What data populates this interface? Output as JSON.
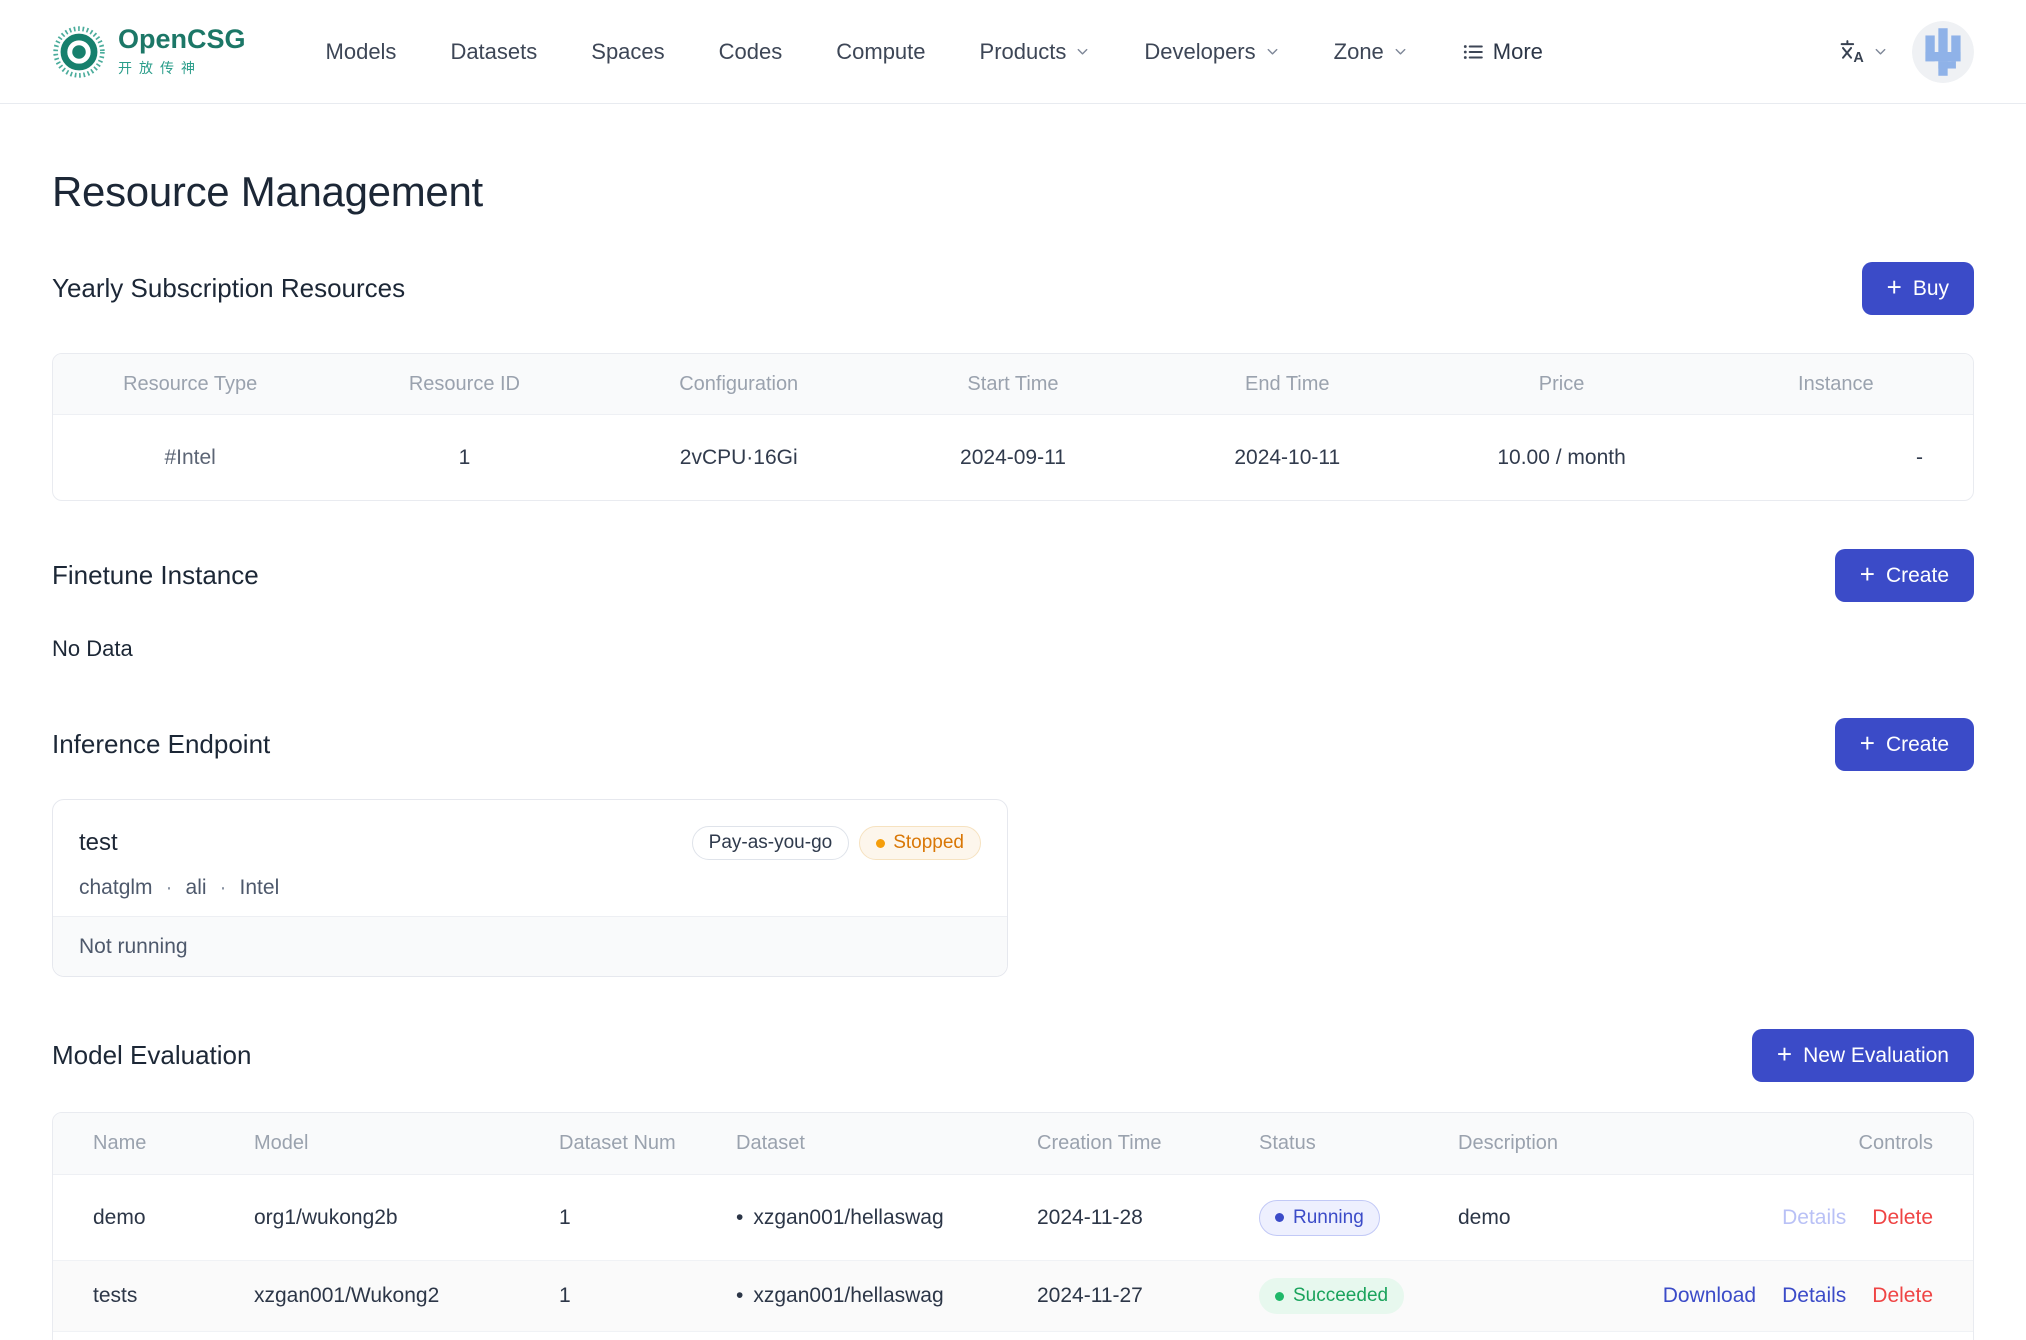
{
  "brand": {
    "name": "OpenCSG",
    "subtitle": "开放传神"
  },
  "nav": {
    "items": [
      {
        "label": "Models",
        "chevron": false
      },
      {
        "label": "Datasets",
        "chevron": false
      },
      {
        "label": "Spaces",
        "chevron": false
      },
      {
        "label": "Codes",
        "chevron": false
      },
      {
        "label": "Compute",
        "chevron": false
      },
      {
        "label": "Products",
        "chevron": true
      },
      {
        "label": "Developers",
        "chevron": true
      },
      {
        "label": "Zone",
        "chevron": true
      }
    ],
    "more_label": "More"
  },
  "page": {
    "title": "Resource Management"
  },
  "subscription": {
    "title": "Yearly Subscription Resources",
    "buy_label": "Buy",
    "headers": [
      "Resource Type",
      "Resource ID",
      "Configuration",
      "Start Time",
      "End Time",
      "Price",
      "Instance"
    ],
    "rows": [
      [
        "#Intel",
        "1",
        "2vCPU·16Gi",
        "2024-09-11",
        "2024-10-11",
        "10.00 / month",
        "-"
      ]
    ]
  },
  "finetune": {
    "title": "Finetune Instance",
    "create_label": "Create",
    "empty_text": "No Data"
  },
  "inference": {
    "title": "Inference Endpoint",
    "create_label": "Create",
    "endpoint": {
      "name": "test",
      "billing_badge": "Pay-as-you-go",
      "status_badge": "Stopped",
      "meta": [
        "chatglm",
        "ali",
        "Intel"
      ],
      "state_text": "Not running"
    }
  },
  "evaluation": {
    "title": "Model Evaluation",
    "new_label": "New Evaluation",
    "headers": [
      "Name",
      "Model",
      "Dataset Num",
      "Dataset",
      "Creation Time",
      "Status",
      "Description",
      "Controls"
    ],
    "rows": [
      {
        "name": "demo",
        "model": "org1/wukong2b",
        "dataset_num": "1",
        "dataset": "xzgan001/hellaswag",
        "creation_time": "2024-11-28",
        "status": {
          "label": "Running",
          "kind": "running"
        },
        "description": "demo",
        "controls": [
          {
            "label": "Details",
            "kind": "disabled"
          },
          {
            "label": "Delete",
            "kind": "danger"
          }
        ]
      },
      {
        "name": "tests",
        "model": "xzgan001/Wukong2",
        "dataset_num": "1",
        "dataset": "xzgan001/hellaswag",
        "creation_time": "2024-11-27",
        "status": {
          "label": "Succeeded",
          "kind": "succeeded"
        },
        "description": "",
        "controls": [
          {
            "label": "Download",
            "kind": "primary"
          },
          {
            "label": "Details",
            "kind": "primary"
          },
          {
            "label": "Delete",
            "kind": "danger"
          }
        ]
      }
    ]
  },
  "colors": {
    "primary": "#3b4bc8",
    "brand": "#2a9d8a",
    "brand_dark": "#1c7767",
    "danger": "#ef4444",
    "warning_text": "#d97706",
    "warning_bg": "#fdf6ec",
    "warning_border": "#f6e2c0",
    "success_text": "#1aa35c",
    "success_bg": "#e7f8ee",
    "heading": "#1c2736",
    "muted": "#9aa2ae",
    "disabled_link": "#b9c1f6"
  }
}
